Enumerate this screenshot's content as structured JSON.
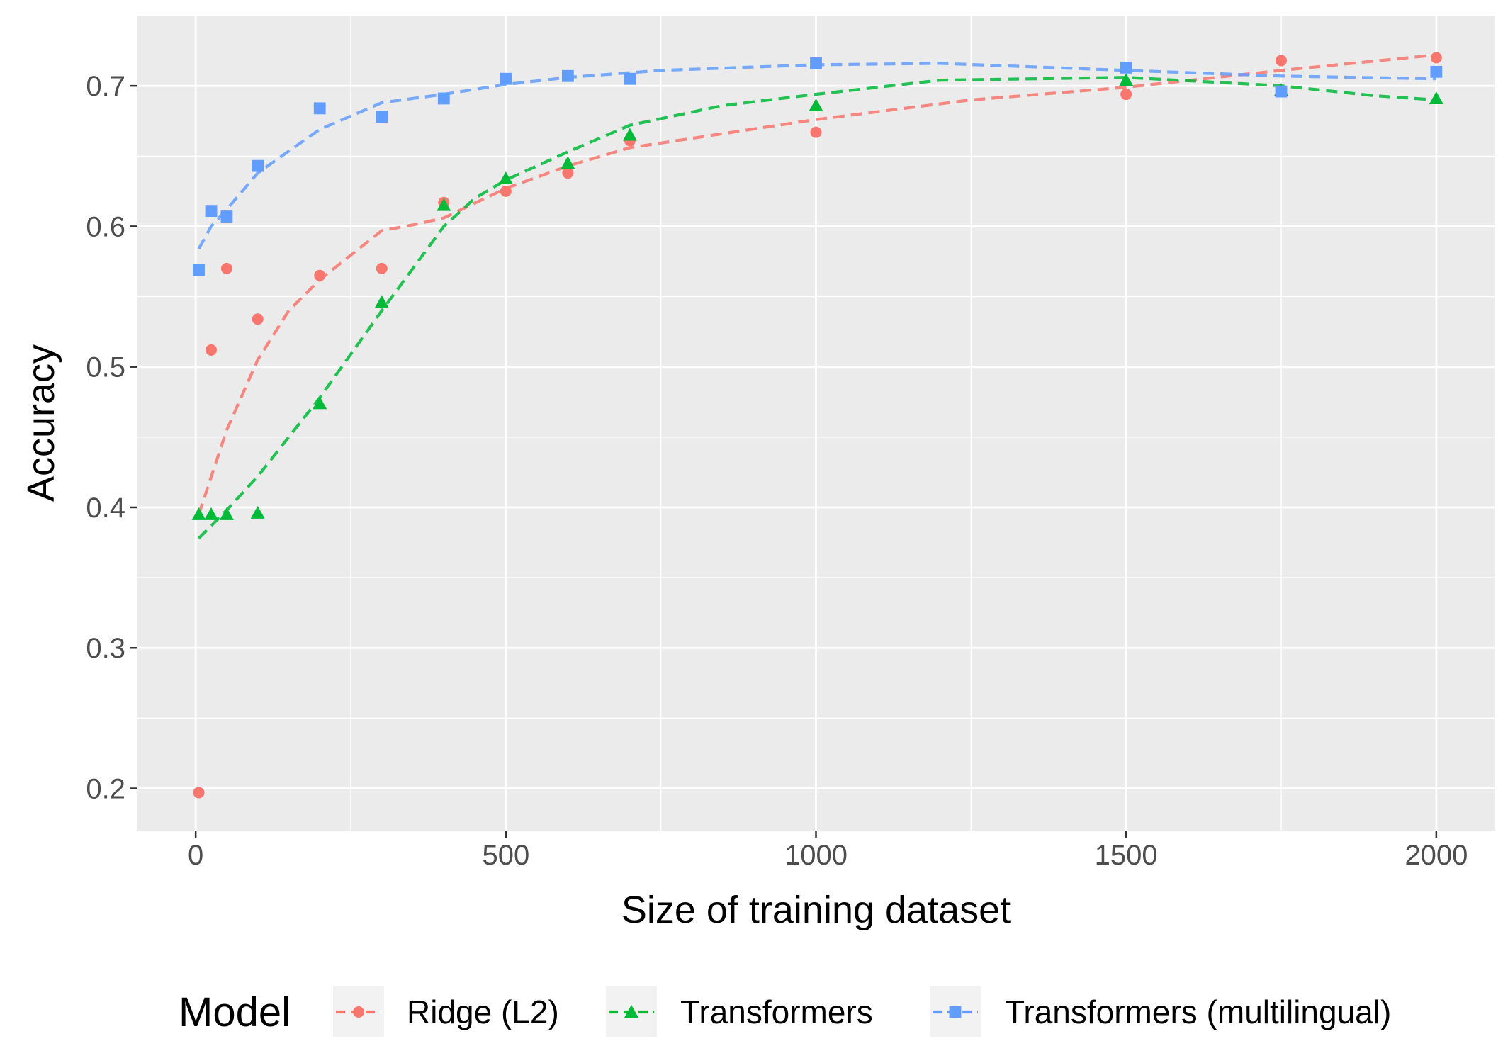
{
  "chart_data": {
    "type": "scatter",
    "xlabel": "Size of training dataset",
    "ylabel": "Accuracy",
    "xlim": [
      -95,
      2095
    ],
    "ylim": [
      0.17,
      0.75
    ],
    "x_ticks": [
      0,
      500,
      1000,
      1500,
      2000
    ],
    "x_tick_labels": [
      "0",
      "500",
      "1000",
      "1500",
      "2000"
    ],
    "y_ticks": [
      0.2,
      0.3,
      0.4,
      0.5,
      0.6,
      0.7
    ],
    "y_tick_labels": [
      "0.2",
      "0.3",
      "0.4",
      "0.5",
      "0.6",
      "0.7"
    ],
    "grid": true,
    "background": "#ebebeb",
    "legend": {
      "title": "Model",
      "position": "bottom"
    },
    "trend_line_style": "dashed smoothed fit per series",
    "series": [
      {
        "name": "Ridge (L2)",
        "color": "#f8766d",
        "marker": "circle",
        "points": [
          [
            5,
            0.197
          ],
          [
            25,
            0.512
          ],
          [
            50,
            0.57
          ],
          [
            100,
            0.534
          ],
          [
            200,
            0.565
          ],
          [
            300,
            0.57
          ],
          [
            400,
            0.617
          ],
          [
            500,
            0.625
          ],
          [
            600,
            0.638
          ],
          [
            700,
            0.661
          ],
          [
            1000,
            0.667
          ],
          [
            1500,
            0.694
          ],
          [
            1750,
            0.718
          ],
          [
            2000,
            0.72
          ]
        ],
        "trend": [
          [
            5,
            0.395
          ],
          [
            50,
            0.455
          ],
          [
            100,
            0.505
          ],
          [
            150,
            0.54
          ],
          [
            200,
            0.562
          ],
          [
            300,
            0.597
          ],
          [
            350,
            0.601
          ],
          [
            400,
            0.606
          ],
          [
            500,
            0.627
          ],
          [
            600,
            0.643
          ],
          [
            700,
            0.656
          ],
          [
            850,
            0.666
          ],
          [
            1000,
            0.676
          ],
          [
            1250,
            0.69
          ],
          [
            1500,
            0.699
          ],
          [
            1750,
            0.711
          ],
          [
            2000,
            0.722
          ]
        ]
      },
      {
        "name": "Transformers",
        "color": "#00ba38",
        "marker": "triangle",
        "points": [
          [
            5,
            0.395
          ],
          [
            25,
            0.395
          ],
          [
            50,
            0.395
          ],
          [
            100,
            0.396
          ],
          [
            200,
            0.474
          ],
          [
            300,
            0.546
          ],
          [
            400,
            0.615
          ],
          [
            500,
            0.634
          ],
          [
            600,
            0.645
          ],
          [
            700,
            0.665
          ],
          [
            1000,
            0.686
          ],
          [
            1500,
            0.704
          ],
          [
            1750,
            0.697
          ],
          [
            2000,
            0.691
          ]
        ],
        "trend": [
          [
            5,
            0.378
          ],
          [
            50,
            0.398
          ],
          [
            100,
            0.422
          ],
          [
            200,
            0.478
          ],
          [
            300,
            0.54
          ],
          [
            400,
            0.6
          ],
          [
            450,
            0.62
          ],
          [
            500,
            0.633
          ],
          [
            600,
            0.653
          ],
          [
            700,
            0.672
          ],
          [
            850,
            0.686
          ],
          [
            1000,
            0.694
          ],
          [
            1200,
            0.704
          ],
          [
            1500,
            0.706
          ],
          [
            1750,
            0.7
          ],
          [
            1900,
            0.693
          ],
          [
            2000,
            0.69
          ]
        ]
      },
      {
        "name": "Transformers (multilingual)",
        "color": "#619cff",
        "marker": "square",
        "points": [
          [
            5,
            0.569
          ],
          [
            25,
            0.611
          ],
          [
            50,
            0.607
          ],
          [
            100,
            0.643
          ],
          [
            200,
            0.684
          ],
          [
            300,
            0.678
          ],
          [
            400,
            0.691
          ],
          [
            500,
            0.705
          ],
          [
            600,
            0.707
          ],
          [
            700,
            0.705
          ],
          [
            1000,
            0.716
          ],
          [
            1500,
            0.713
          ],
          [
            1750,
            0.696
          ],
          [
            2000,
            0.71
          ]
        ],
        "trend": [
          [
            5,
            0.584
          ],
          [
            25,
            0.6
          ],
          [
            50,
            0.612
          ],
          [
            100,
            0.638
          ],
          [
            200,
            0.669
          ],
          [
            300,
            0.688
          ],
          [
            400,
            0.694
          ],
          [
            500,
            0.701
          ],
          [
            600,
            0.706
          ],
          [
            750,
            0.711
          ],
          [
            1000,
            0.715
          ],
          [
            1200,
            0.716
          ],
          [
            1500,
            0.711
          ],
          [
            1750,
            0.707
          ],
          [
            2000,
            0.705
          ]
        ]
      }
    ]
  }
}
